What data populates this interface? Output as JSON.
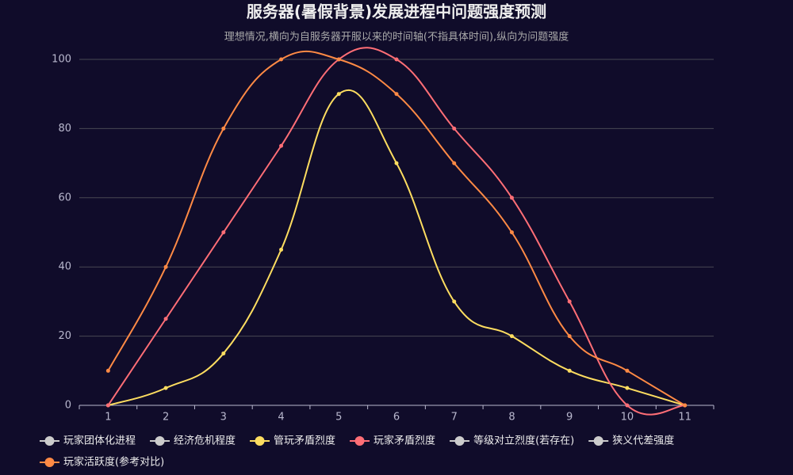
{
  "chart_data": {
    "type": "line",
    "title": "服务器(暑假背景)发展进程中问题强度预测",
    "subtitle": "理想情况,横向为自服务器开服以来的时间轴(不指具体时间),纵向为问题强度",
    "categories": [
      "1",
      "2",
      "3",
      "4",
      "5",
      "6",
      "7",
      "8",
      "9",
      "10",
      "11"
    ],
    "ylim": [
      0,
      100
    ],
    "yticks": [
      0,
      20,
      40,
      60,
      80,
      100
    ],
    "grid": true,
    "smooth": true,
    "legend": "bottom",
    "series": [
      {
        "name": "玩家团体化进程",
        "color": "#cccccc",
        "hidden": true,
        "values": [
          null,
          null,
          null,
          null,
          null,
          null,
          null,
          null,
          null,
          null,
          null
        ]
      },
      {
        "name": "经济危机程度",
        "color": "#cccccc",
        "hidden": true,
        "values": [
          null,
          null,
          null,
          null,
          null,
          null,
          null,
          null,
          null,
          null,
          null
        ]
      },
      {
        "name": "管玩矛盾烈度",
        "color": "#fddd60",
        "values": [
          0,
          5,
          15,
          45,
          90,
          70,
          30,
          20,
          10,
          5,
          0
        ]
      },
      {
        "name": "玩家矛盾烈度",
        "color": "#ff6e76",
        "values": [
          0,
          25,
          50,
          75,
          100,
          100,
          80,
          60,
          30,
          0,
          0
        ]
      },
      {
        "name": "等级对立烈度(若存在)",
        "color": "#cccccc",
        "hidden": true,
        "values": [
          null,
          null,
          null,
          null,
          null,
          null,
          null,
          null,
          null,
          null,
          null
        ]
      },
      {
        "name": "狭义代差强度",
        "color": "#cccccc",
        "hidden": true,
        "values": [
          null,
          null,
          null,
          null,
          null,
          null,
          null,
          null,
          null,
          null,
          null
        ]
      },
      {
        "name": "玩家活跃度(参考对比)",
        "color": "#ff8a45",
        "values": [
          10,
          40,
          80,
          100,
          100,
          90,
          70,
          50,
          20,
          10,
          0
        ]
      }
    ]
  }
}
